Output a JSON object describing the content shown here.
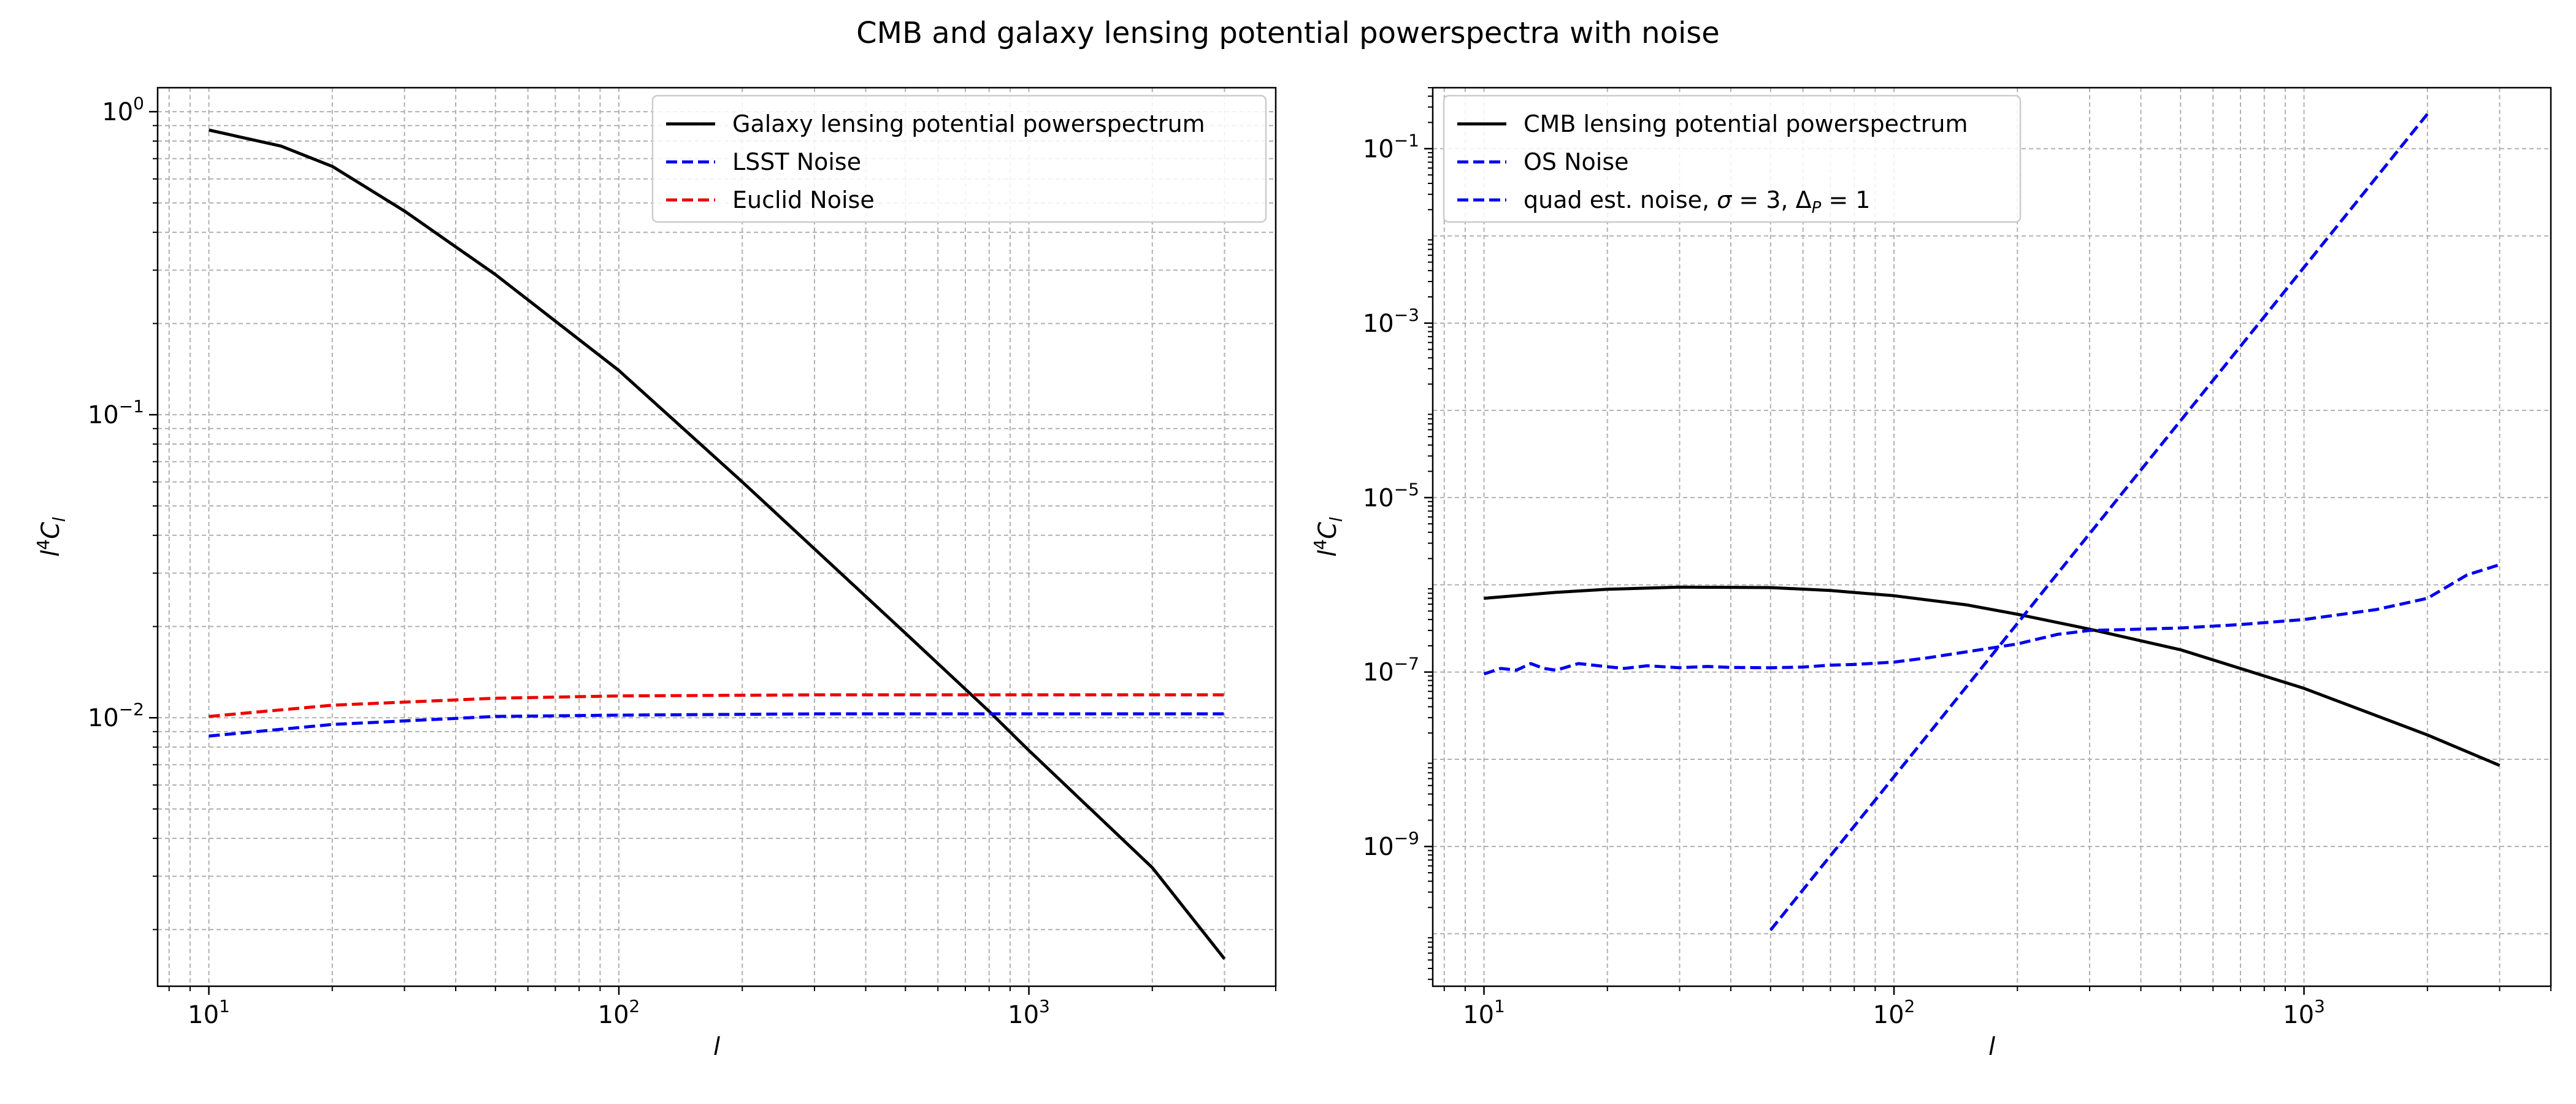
{
  "figure": {
    "title": "CMB and galaxy lensing potential powerspectra with noise"
  },
  "chart_data": [
    {
      "type": "line",
      "xscale": "log",
      "yscale": "log",
      "xlim": [
        7.5,
        4000
      ],
      "ylim": [
        0.0013,
        1.2
      ],
      "xticks": [
        {
          "value": 10,
          "base": "10",
          "exp": "1"
        },
        {
          "value": 100,
          "base": "10",
          "exp": "2"
        },
        {
          "value": 1000,
          "base": "10",
          "exp": "3"
        }
      ],
      "yticks": [
        {
          "value": 0.01,
          "base": "10",
          "exp": "−2"
        },
        {
          "value": 0.1,
          "base": "10",
          "exp": "−1"
        },
        {
          "value": 1,
          "base": "10",
          "exp": "0"
        }
      ],
      "xlabel": "l",
      "ylabel_base": "l",
      "ylabel_sup": "4",
      "ylabel_rest": "C",
      "ylabel_sub": "l",
      "grid": {
        "major": true,
        "minor": true
      },
      "legend": "top-right",
      "series": [
        {
          "name": "Galaxy lensing potential powerspectrum",
          "color": "#000000",
          "dash": "solid",
          "x": [
            10,
            15,
            20,
            30,
            50,
            100,
            200,
            500,
            800,
            1000,
            2000,
            3000
          ],
          "y": [
            0.87,
            0.77,
            0.66,
            0.47,
            0.29,
            0.14,
            0.06,
            0.019,
            0.0105,
            0.0078,
            0.0032,
            0.0016
          ]
        },
        {
          "name": "LSST Noise",
          "color": "#0000ee",
          "dash": "dashed",
          "x": [
            10,
            20,
            50,
            100,
            300,
            1000,
            3000
          ],
          "y": [
            0.0087,
            0.0095,
            0.0101,
            0.0102,
            0.0103,
            0.0103,
            0.0103
          ]
        },
        {
          "name": "Euclid Noise",
          "color": "#ee0000",
          "dash": "dashed",
          "x": [
            10,
            20,
            50,
            100,
            300,
            1000,
            3000
          ],
          "y": [
            0.0101,
            0.011,
            0.0116,
            0.0118,
            0.0119,
            0.0119,
            0.0119
          ]
        }
      ]
    },
    {
      "type": "line",
      "xscale": "log",
      "yscale": "log",
      "xlim": [
        7.5,
        4000
      ],
      "ylim": [
        2.5e-11,
        0.5
      ],
      "xticks": [
        {
          "value": 10,
          "base": "10",
          "exp": "1"
        },
        {
          "value": 100,
          "base": "10",
          "exp": "2"
        },
        {
          "value": 1000,
          "base": "10",
          "exp": "3"
        }
      ],
      "yticks": [
        {
          "value": 1e-09,
          "base": "10",
          "exp": "−9"
        },
        {
          "value": 1e-07,
          "base": "10",
          "exp": "−7"
        },
        {
          "value": 1e-05,
          "base": "10",
          "exp": "−5"
        },
        {
          "value": 0.001,
          "base": "10",
          "exp": "−3"
        },
        {
          "value": 0.1,
          "base": "10",
          "exp": "−1"
        }
      ],
      "xlabel": "l",
      "ylabel_base": "l",
      "ylabel_sup": "4",
      "ylabel_rest": "C",
      "ylabel_sub": "l",
      "grid": {
        "major": true,
        "minor": "x"
      },
      "legend": "top-left",
      "series": [
        {
          "name": "CMB lensing potential powerspectrum",
          "color": "#000000",
          "dash": "solid",
          "x": [
            10,
            15,
            20,
            30,
            50,
            70,
            100,
            150,
            200,
            300,
            500,
            1000,
            2000,
            3000
          ],
          "y": [
            7e-07,
            8.2e-07,
            8.9e-07,
            9.4e-07,
            9.3e-07,
            8.6e-07,
            7.5e-07,
            5.9e-07,
            4.6e-07,
            3.1e-07,
            1.8e-07,
            6.5e-08,
            1.9e-08,
            8.5e-09
          ]
        },
        {
          "name": "OS Noise",
          "color": "#0000ee",
          "dash": "dashed",
          "x": [
            50,
            2000
          ],
          "y": [
            1.1e-10,
            0.25
          ]
        },
        {
          "name_prefix": "quad est. noise, ",
          "name_sigma": "σ",
          "name_mid": " = 3, Δ",
          "name_sub": "P",
          "name_suffix": " = 1",
          "color": "#0000ee",
          "dash": "dashed",
          "x": [
            10,
            11,
            12,
            13,
            14,
            15,
            17,
            20,
            22,
            25,
            30,
            35,
            40,
            50,
            60,
            70,
            80,
            100,
            120,
            150,
            200,
            250,
            300,
            400,
            500,
            700,
            1000,
            1500,
            2000,
            2500,
            3000
          ],
          "y": [
            9.5e-08,
            1.1e-07,
            1.05e-07,
            1.25e-07,
            1.1e-07,
            1.05e-07,
            1.25e-07,
            1.15e-07,
            1.1e-07,
            1.18e-07,
            1.12e-07,
            1.16e-07,
            1.13e-07,
            1.12e-07,
            1.14e-07,
            1.2e-07,
            1.22e-07,
            1.3e-07,
            1.45e-07,
            1.7e-07,
            2.1e-07,
            2.7e-07,
            3e-07,
            3.1e-07,
            3.2e-07,
            3.5e-07,
            4e-07,
            5.2e-07,
            7e-07,
            1.3e-06,
            1.7e-06
          ]
        }
      ]
    }
  ]
}
